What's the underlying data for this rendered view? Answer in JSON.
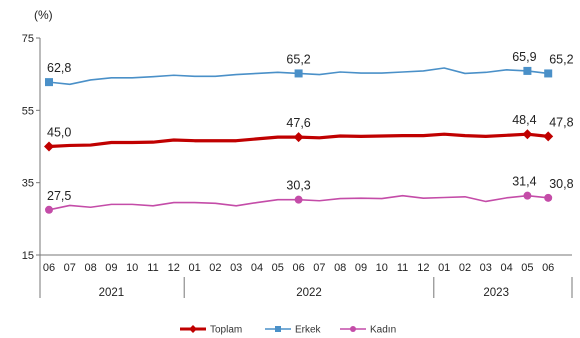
{
  "chart_data": {
    "type": "line",
    "ylabel": "(%)",
    "ylim": [
      15,
      75
    ],
    "yticks": [
      15,
      35,
      55,
      75
    ],
    "grid": false,
    "legend_position": "bottom",
    "x": [
      "06",
      "07",
      "08",
      "09",
      "10",
      "11",
      "12",
      "01",
      "02",
      "03",
      "04",
      "05",
      "06",
      "07",
      "08",
      "09",
      "10",
      "11",
      "12",
      "01",
      "02",
      "03",
      "04",
      "05",
      "06"
    ],
    "years": [
      {
        "label": "2021",
        "start": 0,
        "end": 6
      },
      {
        "label": "2022",
        "start": 7,
        "end": 18
      },
      {
        "label": "2023",
        "start": 19,
        "end": 24
      }
    ],
    "series": [
      {
        "name": "Toplam",
        "color": "#c00000",
        "values": [
          45.0,
          45.3,
          45.4,
          46.1,
          46.1,
          46.2,
          46.8,
          46.6,
          46.6,
          46.6,
          47.1,
          47.6,
          47.6,
          47.4,
          47.9,
          47.8,
          47.9,
          48.0,
          48.0,
          48.4,
          48.0,
          47.8,
          48.1,
          48.4,
          47.8
        ],
        "labels": [
          {
            "index": 0,
            "text": "45,0"
          },
          {
            "index": 12,
            "text": "47,6"
          },
          {
            "index": 23,
            "text": "48,4"
          },
          {
            "index": 24,
            "text": "47,8"
          }
        ],
        "marked": [
          0,
          12,
          23,
          24
        ]
      },
      {
        "name": "Erkek",
        "color": "#4a90c8",
        "values": [
          62.8,
          62.2,
          63.4,
          64.0,
          64.0,
          64.3,
          64.7,
          64.4,
          64.4,
          64.9,
          65.2,
          65.5,
          65.2,
          64.9,
          65.6,
          65.3,
          65.3,
          65.6,
          65.9,
          66.7,
          65.2,
          65.5,
          66.2,
          65.9,
          65.2
        ],
        "labels": [
          {
            "index": 0,
            "text": "62,8"
          },
          {
            "index": 12,
            "text": "65,2"
          },
          {
            "index": 23,
            "text": "65,9"
          },
          {
            "index": 24,
            "text": "65,2"
          }
        ],
        "marked": [
          0,
          12,
          23,
          24
        ]
      },
      {
        "name": "Kadın",
        "color": "#c44ca8",
        "values": [
          27.5,
          28.7,
          28.2,
          29.0,
          29.0,
          28.6,
          29.5,
          29.5,
          29.3,
          28.6,
          29.5,
          30.3,
          30.3,
          30.0,
          30.6,
          30.7,
          30.6,
          31.4,
          30.7,
          30.9,
          31.1,
          29.8,
          30.8,
          31.4,
          30.8
        ],
        "labels": [
          {
            "index": 0,
            "text": "27,5"
          },
          {
            "index": 12,
            "text": "30,3"
          },
          {
            "index": 23,
            "text": "31,4"
          },
          {
            "index": 24,
            "text": "30,8"
          }
        ],
        "marked": [
          0,
          12,
          23,
          24
        ]
      }
    ]
  }
}
